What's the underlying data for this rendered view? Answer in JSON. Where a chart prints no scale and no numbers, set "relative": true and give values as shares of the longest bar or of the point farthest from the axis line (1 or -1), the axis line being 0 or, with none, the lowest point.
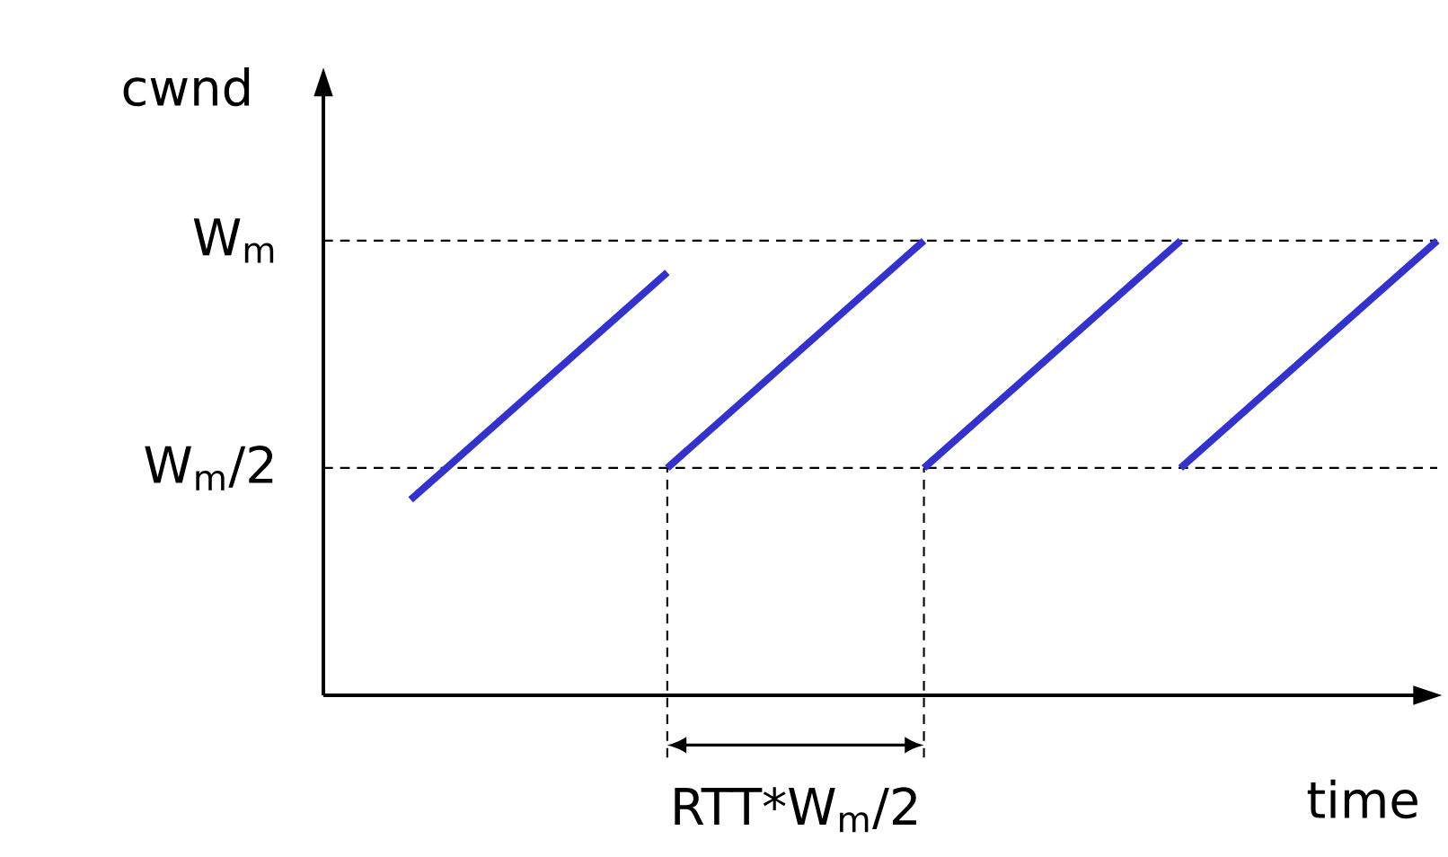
{
  "chart_data": {
    "type": "line",
    "xlabel": "time",
    "ylabel": "cwnd",
    "relative": true,
    "categories": [
      null,
      null,
      null,
      null,
      null
    ],
    "series": [
      {
        "color": "#3333cc",
        "values": [
          0.43,
          0.93,
          null,
          null,
          null
        ]
      },
      {
        "color": "#3333cc",
        "values": [
          null,
          0.5,
          1,
          null,
          null
        ]
      },
      {
        "color": "#3333cc",
        "values": [
          null,
          null,
          0.5,
          1,
          null
        ]
      },
      {
        "color": "#3333cc",
        "values": [
          null,
          null,
          null,
          0.5,
          1
        ]
      }
    ],
    "ref_lines": [
      {
        "axis": "y",
        "value": 1,
        "label": "W$_{m}$",
        "line_style": "dashed",
        "color": "#000000"
      },
      {
        "axis": "y",
        "value": 0.5,
        "label": "W$_{m}$/2",
        "line_style": "dashed",
        "color": "#000000"
      }
    ],
    "annotations": [
      "RTT*W$_{m}$/2"
    ]
  }
}
